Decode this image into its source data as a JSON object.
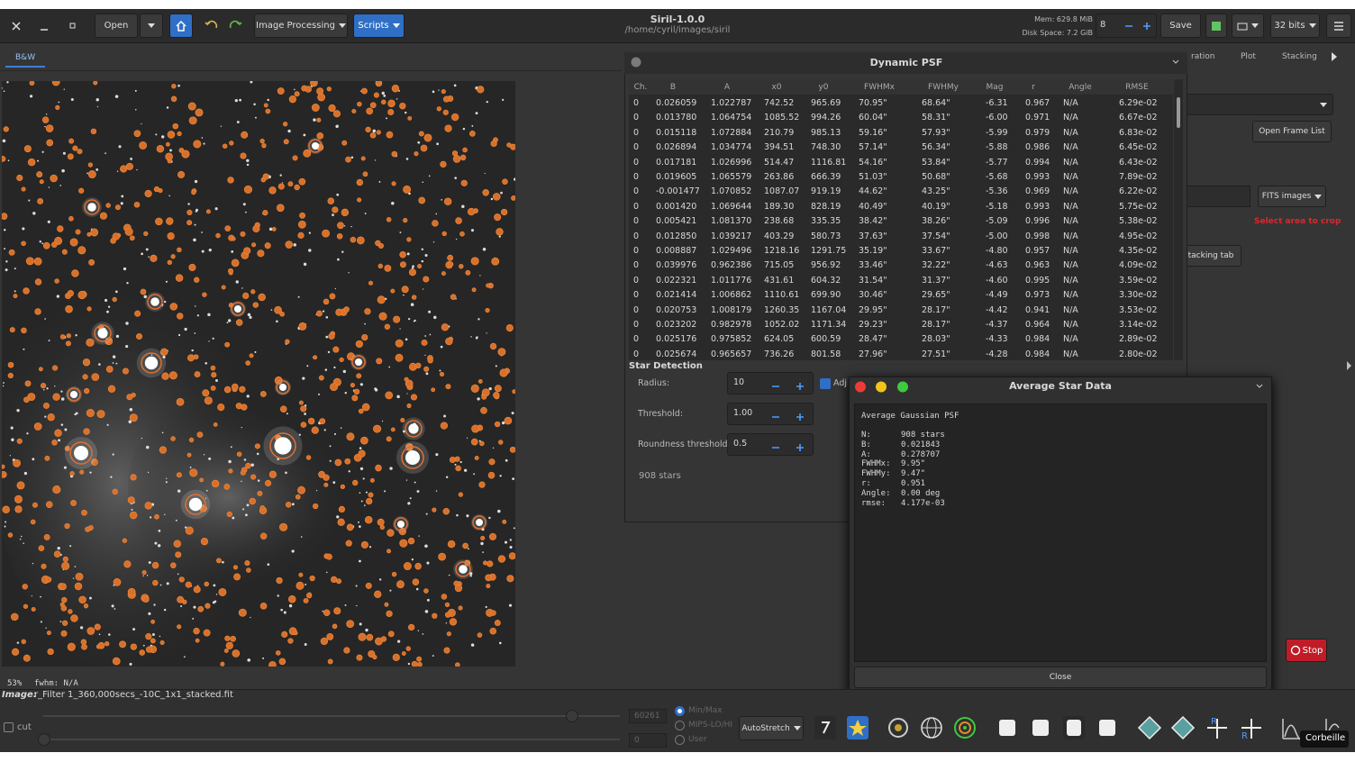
{
  "header": {
    "open": "Open",
    "image_processing": "Image Processing",
    "scripts": "Scripts",
    "title": "Siril-1.0.0",
    "path": "/home/cyril/images/siril",
    "mem": "Mem: 629.8 MiB",
    "disk": "Disk Space: 7.2 GiB",
    "threads": "8",
    "save": "Save",
    "bits": "32 bits"
  },
  "tabs": {
    "image": "B&W",
    "right": [
      "ration",
      "Plot",
      "Stacking"
    ]
  },
  "right_panel": {
    "open_frame_list": "Open Frame List",
    "fits_images": "FITS images",
    "crop_hint": "Select area to crop",
    "stacking_tab": "tacking tab",
    "stop": "Stop"
  },
  "psf": {
    "title": "Dynamic PSF",
    "columns": [
      "Ch.",
      "B",
      "A",
      "x0",
      "y0",
      "FWHMx",
      "FWHMy",
      "Mag",
      "r",
      "Angle",
      "RMSE"
    ],
    "rows": [
      [
        "0",
        "0.026059",
        "1.022787",
        "742.52",
        "965.69",
        "70.95\"",
        "68.64\"",
        "-6.31",
        "0.967",
        "N/A",
        "6.29e-02"
      ],
      [
        "0",
        "0.013780",
        "1.064754",
        "1085.52",
        "994.26",
        "60.04\"",
        "58.31\"",
        "-6.00",
        "0.971",
        "N/A",
        "6.67e-02"
      ],
      [
        "0",
        "0.015118",
        "1.072884",
        "210.79",
        "985.13",
        "59.16\"",
        "57.93\"",
        "-5.99",
        "0.979",
        "N/A",
        "6.83e-02"
      ],
      [
        "0",
        "0.026894",
        "1.034774",
        "394.51",
        "748.30",
        "57.14\"",
        "56.34\"",
        "-5.88",
        "0.986",
        "N/A",
        "6.45e-02"
      ],
      [
        "0",
        "0.017181",
        "1.026996",
        "514.47",
        "1116.81",
        "54.16\"",
        "53.84\"",
        "-5.77",
        "0.994",
        "N/A",
        "6.43e-02"
      ],
      [
        "0",
        "0.019605",
        "1.065579",
        "263.86",
        "666.39",
        "51.03\"",
        "50.68\"",
        "-5.68",
        "0.993",
        "N/A",
        "7.89e-02"
      ],
      [
        "0",
        "-0.001477",
        "1.070852",
        "1087.07",
        "919.19",
        "44.62\"",
        "43.25\"",
        "-5.36",
        "0.969",
        "N/A",
        "6.22e-02"
      ],
      [
        "0",
        "0.001420",
        "1.069644",
        "189.30",
        "828.19",
        "40.49\"",
        "40.19\"",
        "-5.18",
        "0.993",
        "N/A",
        "5.75e-02"
      ],
      [
        "0",
        "0.005421",
        "1.081370",
        "238.68",
        "335.35",
        "38.42\"",
        "38.26\"",
        "-5.09",
        "0.996",
        "N/A",
        "5.38e-02"
      ],
      [
        "0",
        "0.012850",
        "1.039217",
        "403.29",
        "580.73",
        "37.63\"",
        "37.54\"",
        "-5.00",
        "0.998",
        "N/A",
        "4.95e-02"
      ],
      [
        "0",
        "0.008887",
        "1.029496",
        "1218.16",
        "1291.75",
        "35.19\"",
        "33.67\"",
        "-4.80",
        "0.957",
        "N/A",
        "4.35e-02"
      ],
      [
        "0",
        "0.039976",
        "0.962386",
        "715.05",
        "956.92",
        "33.46\"",
        "32.22\"",
        "-4.63",
        "0.963",
        "N/A",
        "4.09e-02"
      ],
      [
        "0",
        "0.022321",
        "1.011776",
        "431.61",
        "604.32",
        "31.54\"",
        "31.37\"",
        "-4.60",
        "0.995",
        "N/A",
        "3.59e-02"
      ],
      [
        "0",
        "0.021414",
        "1.006862",
        "1110.61",
        "699.90",
        "30.46\"",
        "29.65\"",
        "-4.49",
        "0.973",
        "N/A",
        "3.30e-02"
      ],
      [
        "0",
        "0.020753",
        "1.008179",
        "1260.35",
        "1167.04",
        "29.95\"",
        "28.17\"",
        "-4.42",
        "0.941",
        "N/A",
        "3.53e-02"
      ],
      [
        "0",
        "0.023202",
        "0.982978",
        "1052.02",
        "1171.34",
        "29.23\"",
        "28.17\"",
        "-4.37",
        "0.964",
        "N/A",
        "3.14e-02"
      ],
      [
        "0",
        "0.025176",
        "0.975852",
        "624.05",
        "600.59",
        "28.47\"",
        "28.03\"",
        "-4.33",
        "0.984",
        "N/A",
        "2.89e-02"
      ],
      [
        "0",
        "0.025674",
        "0.965657",
        "736.26",
        "801.58",
        "27.96\"",
        "27.51\"",
        "-4.28",
        "0.984",
        "N/A",
        "2.80e-02"
      ]
    ]
  },
  "star_detection": {
    "title": "Star Detection",
    "radius_label": "Radius:",
    "radius": "10",
    "threshold_label": "Threshold:",
    "threshold": "1.00",
    "roundness_label": "Roundness threshold:",
    "roundness": "0.5",
    "adjust": "Adj",
    "count": "908 stars"
  },
  "average": {
    "title": "Average Star Data",
    "heading": "Average Gaussian PSF",
    "lines": [
      [
        "N:",
        "908 stars"
      ],
      [
        "B:",
        "0.021843"
      ],
      [
        "A:",
        "0.278707"
      ],
      [
        "FWHMx:",
        "9.95\""
      ],
      [
        "FWHMy:",
        "9.47\""
      ],
      [
        "r:",
        "0.951"
      ],
      [
        "Angle:",
        "0.00 deg"
      ],
      [
        "rmse:",
        "4.177e-03"
      ]
    ],
    "close": "Close"
  },
  "status": {
    "zoom": "53%",
    "fwhm": "fwhm: N/A",
    "image_label": "Image:",
    "file": "r_Filter 1_360,000secs_-10C_1x1_stacked.fit"
  },
  "bottom": {
    "cut": "cut",
    "high": "60261",
    "low": "0",
    "modes": [
      "Min/Max",
      "MIPS-LO/HI",
      "User"
    ],
    "stretch": "AutoStretch",
    "tooltip": "Corbeille"
  }
}
